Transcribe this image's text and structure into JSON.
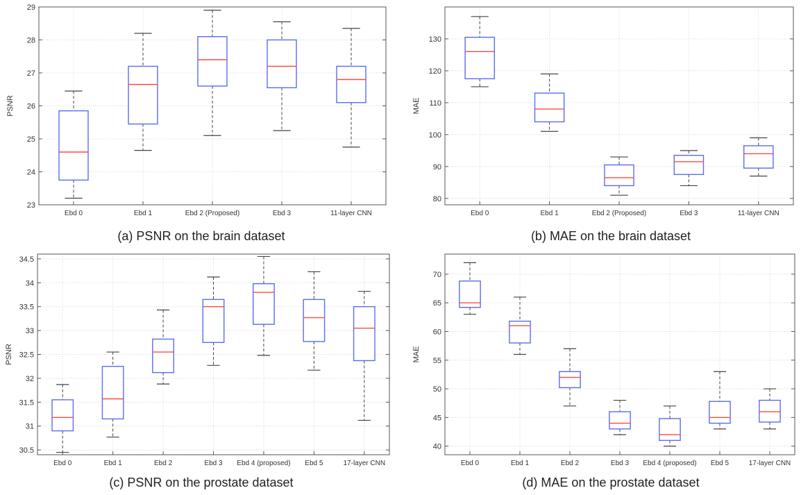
{
  "chart_data": [
    {
      "type": "box",
      "panel": "a",
      "caption": "(a) PSNR on the brain dataset",
      "xlabel": "",
      "ylabel": "PSNR",
      "ylim": [
        23,
        29
      ],
      "yticks": [
        23,
        24,
        25,
        26,
        27,
        28,
        29
      ],
      "ytick_labels": [
        "23",
        "24",
        "25",
        "26",
        "27",
        "28",
        "29"
      ],
      "grid": true,
      "categories": [
        "Ebd 0",
        "Ebd 1",
        "Ebd 2 (Proposed)",
        "Ebd 3",
        "11-layer CNN"
      ],
      "boxes": [
        {
          "min": 23.2,
          "q1": 23.75,
          "median": 24.6,
          "q3": 25.85,
          "max": 26.45
        },
        {
          "min": 24.65,
          "q1": 25.45,
          "median": 26.65,
          "q3": 27.2,
          "max": 28.2
        },
        {
          "min": 25.1,
          "q1": 26.6,
          "median": 27.4,
          "q3": 28.1,
          "max": 28.9
        },
        {
          "min": 25.25,
          "q1": 26.55,
          "median": 27.2,
          "q3": 28.0,
          "max": 28.55
        },
        {
          "min": 24.75,
          "q1": 26.1,
          "median": 26.8,
          "q3": 27.2,
          "max": 28.35
        }
      ]
    },
    {
      "type": "box",
      "panel": "b",
      "caption": "(b) MAE on the brain dataset",
      "xlabel": "",
      "ylabel": "MAE",
      "ylim": [
        78,
        140
      ],
      "yticks": [
        80,
        90,
        100,
        110,
        120,
        130
      ],
      "ytick_labels": [
        "80",
        "90",
        "100",
        "110",
        "120",
        "130"
      ],
      "grid": true,
      "categories": [
        "Ebd 0",
        "Ebd 1",
        "Ebd 2 (Proposed)",
        "Ebd 3",
        "11-layer CNN"
      ],
      "boxes": [
        {
          "min": 115,
          "q1": 117.5,
          "median": 126,
          "q3": 130.5,
          "max": 137
        },
        {
          "min": 101,
          "q1": 104,
          "median": 108,
          "q3": 113,
          "max": 119
        },
        {
          "min": 81,
          "q1": 84,
          "median": 86.5,
          "q3": 90.5,
          "max": 93
        },
        {
          "min": 84,
          "q1": 87.5,
          "median": 91.5,
          "q3": 93.5,
          "max": 95
        },
        {
          "min": 87,
          "q1": 89.5,
          "median": 94,
          "q3": 96.5,
          "max": 99
        }
      ]
    },
    {
      "type": "box",
      "panel": "c",
      "caption": "(c) PSNR on the prostate dataset",
      "xlabel": "",
      "ylabel": "PSNR",
      "ylim": [
        30.4,
        34.6
      ],
      "yticks": [
        30.5,
        31,
        31.5,
        32,
        32.5,
        33,
        33.5,
        34,
        34.5
      ],
      "ytick_labels": [
        "30.5",
        "31",
        "31.5",
        "32",
        "32.5",
        "33",
        "33.5",
        "34",
        "34.5"
      ],
      "grid": true,
      "categories": [
        "Ebd 0",
        "Ebd 1",
        "Ebd 2",
        "Ebd 3",
        "Ebd 4 (proposed)",
        "Ebd 5",
        "17-layer CNN"
      ],
      "boxes": [
        {
          "min": 30.45,
          "q1": 30.9,
          "median": 31.18,
          "q3": 31.55,
          "max": 31.87
        },
        {
          "min": 30.77,
          "q1": 31.15,
          "median": 31.57,
          "q3": 32.25,
          "max": 32.55
        },
        {
          "min": 31.88,
          "q1": 32.12,
          "median": 32.55,
          "q3": 32.82,
          "max": 33.43
        },
        {
          "min": 32.27,
          "q1": 32.75,
          "median": 33.5,
          "q3": 33.65,
          "max": 34.12
        },
        {
          "min": 32.48,
          "q1": 33.13,
          "median": 33.8,
          "q3": 33.98,
          "max": 34.55
        },
        {
          "min": 32.17,
          "q1": 32.77,
          "median": 33.27,
          "q3": 33.65,
          "max": 34.23
        },
        {
          "min": 31.12,
          "q1": 32.37,
          "median": 33.05,
          "q3": 33.5,
          "max": 33.82
        }
      ]
    },
    {
      "type": "box",
      "panel": "d",
      "caption": "(d) MAE on the prostate dataset",
      "xlabel": "",
      "ylabel": "MAE",
      "ylim": [
        38.5,
        73.5
      ],
      "yticks": [
        40,
        45,
        50,
        55,
        60,
        65,
        70
      ],
      "ytick_labels": [
        "40",
        "45",
        "50",
        "55",
        "60",
        "65",
        "70"
      ],
      "grid": true,
      "categories": [
        "Ebd 0",
        "Ebd 1",
        "Ebd 2",
        "Ebd 3",
        "Ebd 4 (proposed)",
        "Ebd 5",
        "17-layer CNN"
      ],
      "boxes": [
        {
          "min": 63,
          "q1": 64.2,
          "median": 65,
          "q3": 68.8,
          "max": 72
        },
        {
          "min": 56,
          "q1": 58,
          "median": 61,
          "q3": 61.8,
          "max": 66
        },
        {
          "min": 47,
          "q1": 50.2,
          "median": 52,
          "q3": 53,
          "max": 57
        },
        {
          "min": 42,
          "q1": 43,
          "median": 44,
          "q3": 46,
          "max": 48
        },
        {
          "min": 40,
          "q1": 41,
          "median": 42,
          "q3": 44.8,
          "max": 47
        },
        {
          "min": 43,
          "q1": 44,
          "median": 45,
          "q3": 47.8,
          "max": 53
        },
        {
          "min": 43,
          "q1": 44.2,
          "median": 46,
          "q3": 48,
          "max": 50
        }
      ]
    }
  ],
  "style": {
    "box_color": "#5a6cf0",
    "median_color": "#ff4a3a",
    "whisker_color": "#444444",
    "grid_color": "#d4d4d4",
    "axis_color": "#555555",
    "text_color": "#333333"
  }
}
